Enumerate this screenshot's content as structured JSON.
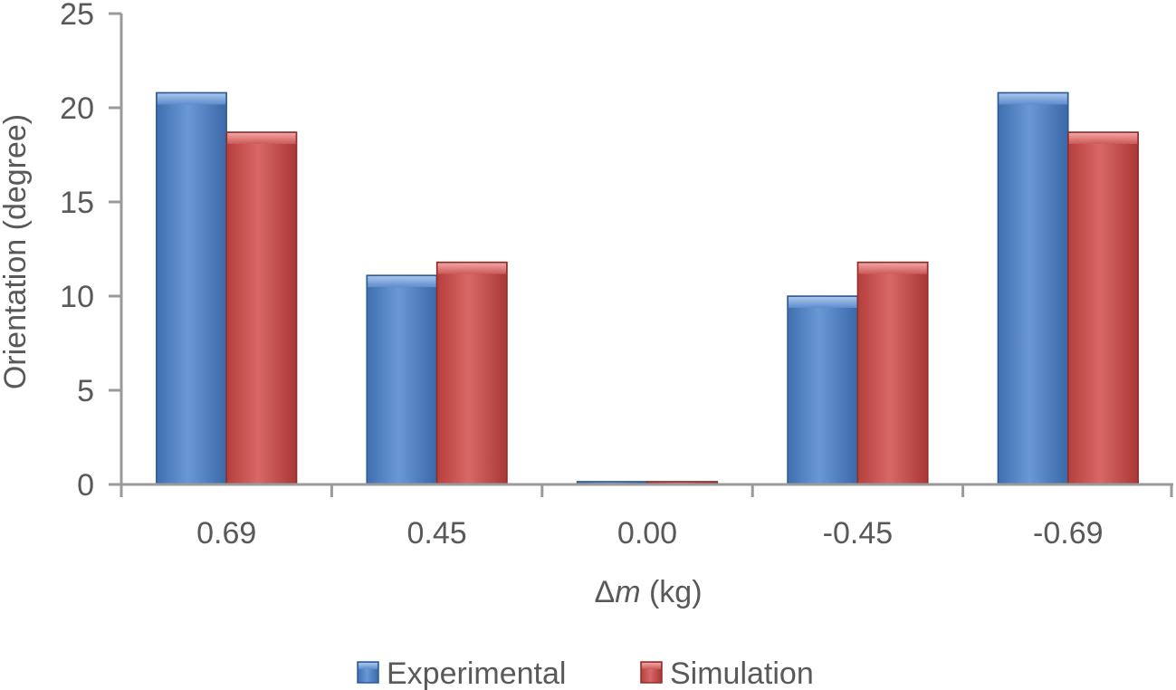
{
  "chart_data": {
    "type": "bar",
    "title": "",
    "xlabel": "Δm (kg)",
    "xlabel_prefix": "Δ",
    "xlabel_var": "m",
    "xlabel_unit": " (kg)",
    "ylabel": "Orientation (degree)",
    "categories": [
      "0.69",
      "0.45",
      "0.00",
      "-0.45",
      "-0.69"
    ],
    "ylim": [
      0,
      25
    ],
    "yticks": [
      0,
      5,
      10,
      15,
      20,
      25
    ],
    "grid": false,
    "legend_position": "bottom",
    "series": [
      {
        "name": "Experimental",
        "color": "#4F81BD",
        "values": [
          20.8,
          11.1,
          0.15,
          10.0,
          20.8
        ]
      },
      {
        "name": "Simulation",
        "color": "#C0504D",
        "values": [
          18.7,
          11.8,
          0.15,
          11.8,
          18.7
        ]
      }
    ]
  }
}
